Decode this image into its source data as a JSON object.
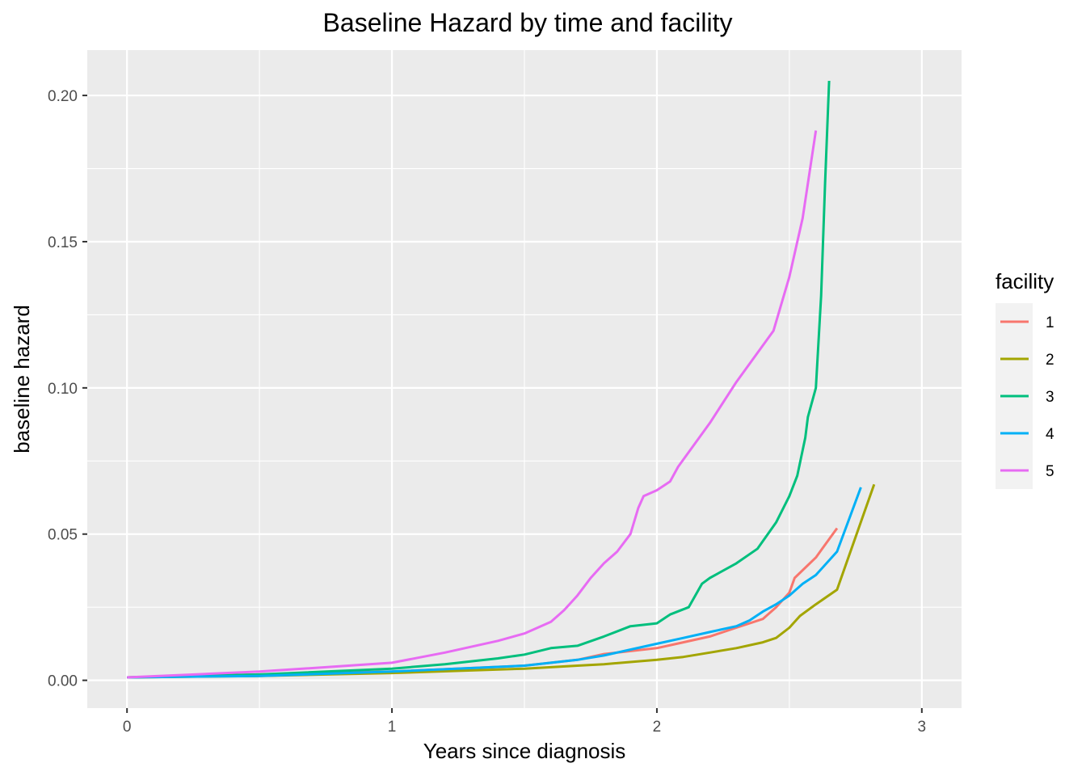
{
  "chart_data": {
    "type": "line",
    "title": "Baseline Hazard by time and facility",
    "xlabel": "Years since diagnosis",
    "ylabel": "baseline hazard",
    "xlim": [
      -0.15,
      3.15
    ],
    "ylim": [
      -0.0095,
      0.2155
    ],
    "x_ticks": [
      0,
      1,
      2,
      3
    ],
    "x_tick_labels": [
      "0",
      "1",
      "2",
      "3"
    ],
    "y_ticks": [
      0.0,
      0.05,
      0.1,
      0.15,
      0.2
    ],
    "y_tick_labels": [
      "0.00",
      "0.05",
      "0.10",
      "0.15",
      "0.20"
    ],
    "grid": true,
    "legend": {
      "title": "facility",
      "position": "right"
    },
    "series": [
      {
        "name": "1",
        "color": "#F8766D",
        "x": [
          0,
          0.5,
          1.0,
          1.5,
          1.7,
          1.8,
          2.0,
          2.1,
          2.2,
          2.3,
          2.4,
          2.45,
          2.5,
          2.52,
          2.6,
          2.68
        ],
        "y": [
          0.001,
          0.002,
          0.003,
          0.005,
          0.007,
          0.009,
          0.011,
          0.013,
          0.015,
          0.018,
          0.021,
          0.025,
          0.03,
          0.035,
          0.042,
          0.052
        ]
      },
      {
        "name": "2",
        "color": "#A3A500",
        "x": [
          0,
          0.5,
          1.0,
          1.5,
          1.7,
          1.8,
          2.0,
          2.1,
          2.2,
          2.3,
          2.4,
          2.45,
          2.5,
          2.54,
          2.6,
          2.68,
          2.82
        ],
        "y": [
          0.001,
          0.0015,
          0.0025,
          0.004,
          0.005,
          0.0055,
          0.007,
          0.008,
          0.0095,
          0.011,
          0.013,
          0.0145,
          0.018,
          0.022,
          0.026,
          0.031,
          0.067
        ]
      },
      {
        "name": "3",
        "color": "#00BF7D",
        "x": [
          0,
          0.5,
          1.0,
          1.2,
          1.4,
          1.5,
          1.6,
          1.7,
          1.8,
          1.9,
          2.0,
          2.05,
          2.12,
          2.17,
          2.2,
          2.3,
          2.38,
          2.45,
          2.5,
          2.53,
          2.56,
          2.57,
          2.6,
          2.62,
          2.635,
          2.65
        ],
        "y": [
          0.001,
          0.002,
          0.004,
          0.0055,
          0.0075,
          0.0088,
          0.011,
          0.0118,
          0.015,
          0.0185,
          0.0195,
          0.0225,
          0.025,
          0.033,
          0.035,
          0.04,
          0.045,
          0.054,
          0.063,
          0.07,
          0.083,
          0.09,
          0.1,
          0.1315,
          0.17,
          0.205
        ]
      },
      {
        "name": "4",
        "color": "#00B0F6",
        "x": [
          0,
          0.5,
          1.0,
          1.5,
          1.7,
          1.8,
          1.9,
          2.0,
          2.1,
          2.2,
          2.3,
          2.35,
          2.4,
          2.45,
          2.5,
          2.55,
          2.6,
          2.68,
          2.77
        ],
        "y": [
          0.001,
          0.0015,
          0.003,
          0.005,
          0.007,
          0.0085,
          0.0105,
          0.0125,
          0.0145,
          0.0165,
          0.0185,
          0.0205,
          0.0235,
          0.026,
          0.029,
          0.033,
          0.036,
          0.044,
          0.066
        ]
      },
      {
        "name": "5",
        "color": "#E76BF3",
        "x": [
          0,
          0.5,
          1.0,
          1.2,
          1.4,
          1.5,
          1.6,
          1.65,
          1.7,
          1.75,
          1.8,
          1.85,
          1.9,
          1.93,
          1.95,
          2.0,
          2.05,
          2.08,
          2.2,
          2.3,
          2.44,
          2.5,
          2.55,
          2.6
        ],
        "y": [
          0.001,
          0.003,
          0.006,
          0.0095,
          0.0135,
          0.016,
          0.02,
          0.024,
          0.029,
          0.035,
          0.04,
          0.044,
          0.05,
          0.059,
          0.063,
          0.065,
          0.068,
          0.073,
          0.088,
          0.102,
          0.1195,
          0.138,
          0.158,
          0.188
        ]
      }
    ]
  }
}
